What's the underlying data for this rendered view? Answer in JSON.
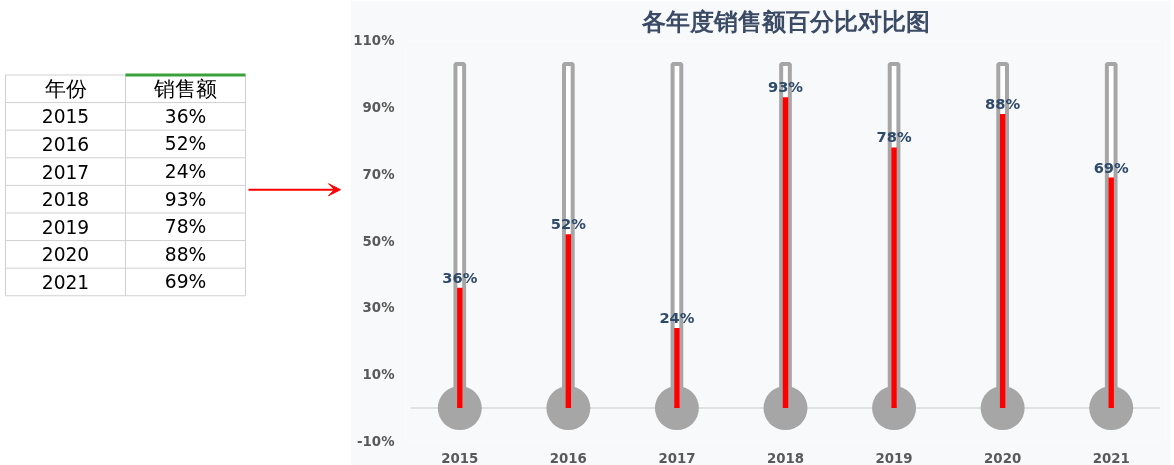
{
  "chart_data": {
    "type": "bar",
    "title": "各年度销售额百分比对比图",
    "categories": [
      "2015",
      "2016",
      "2017",
      "2018",
      "2019",
      "2020",
      "2021"
    ],
    "series": [
      {
        "color": "#a6a6a6",
        "values": [
          103,
          103,
          103,
          103,
          103,
          103,
          103
        ]
      },
      {
        "color": "#ff0000",
        "values": [
          36,
          52,
          24,
          93,
          78,
          88,
          69
        ],
        "value_labels": [
          "36%",
          "52%",
          "24%",
          "93%",
          "78%",
          "88%",
          "69%"
        ]
      },
      {
        "type": "scatter",
        "color": "#a6a6a6",
        "values": [
          0,
          0,
          0,
          0,
          0,
          0,
          0
        ]
      }
    ],
    "marker": "circle",
    "ylim": [
      -10,
      110
    ],
    "yticks": [
      {
        "value": -10,
        "label": "-10%"
      },
      {
        "value": 10,
        "label": "10%"
      },
      {
        "value": 30,
        "label": "30%"
      },
      {
        "value": 50,
        "label": "50%"
      },
      {
        "value": 70,
        "label": "70%"
      },
      {
        "value": 90,
        "label": "90%"
      },
      {
        "value": 110,
        "label": "110%"
      }
    ],
    "annotations": [
      "年份",
      "销售额"
    ],
    "grid": false,
    "legend": false
  }
}
